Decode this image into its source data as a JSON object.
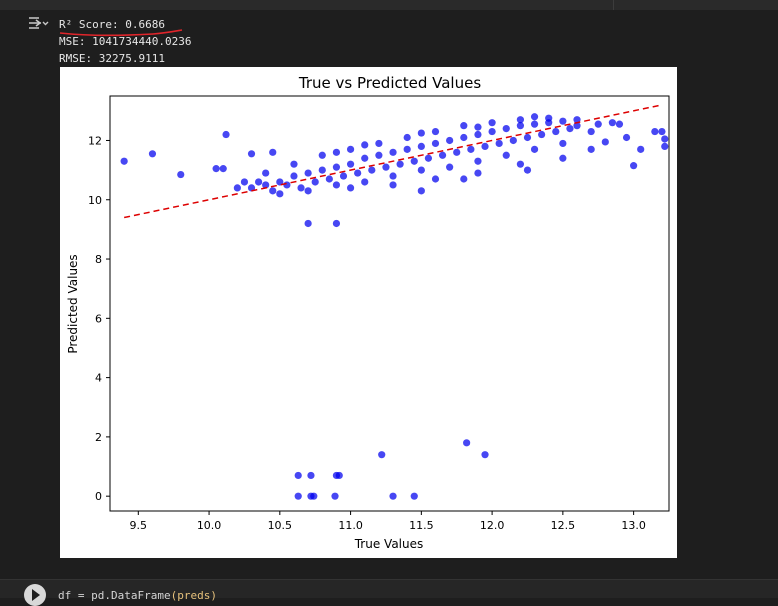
{
  "output": {
    "icon": "output-toggle-icon",
    "lines": {
      "r2": "R² Score: 0.6686",
      "mse": "MSE: 1041734440.0236",
      "rmse": "RMSE: 32275.9111"
    },
    "annotation_color": "#e0252b"
  },
  "chart_data": {
    "type": "scatter",
    "title": "True vs Predicted Values",
    "xlabel": "True Values",
    "ylabel": "Predicted Values",
    "xlim": [
      9.3,
      13.25
    ],
    "ylim": [
      -0.5,
      13.5
    ],
    "xticks": [
      "9.5",
      "10.0",
      "10.5",
      "11.0",
      "11.5",
      "12.0",
      "12.5",
      "13.0"
    ],
    "yticks": [
      "0",
      "2",
      "4",
      "6",
      "8",
      "10",
      "12"
    ],
    "point_color": "#0000ee",
    "line_color": "#dd0000",
    "reference_line": {
      "x": [
        9.4,
        13.2
      ],
      "y": [
        9.4,
        13.2
      ]
    },
    "points": [
      [
        9.4,
        11.3
      ],
      [
        9.6,
        11.55
      ],
      [
        9.8,
        10.85
      ],
      [
        10.05,
        11.05
      ],
      [
        10.1,
        11.05
      ],
      [
        10.12,
        12.2
      ],
      [
        10.3,
        11.55
      ],
      [
        10.7,
        9.2
      ],
      [
        10.9,
        9.2
      ],
      [
        10.45,
        11.6
      ],
      [
        11.5,
        10.3
      ],
      [
        11.8,
        10.7
      ],
      [
        12.25,
        11.0
      ],
      [
        12.5,
        11.4
      ],
      [
        12.7,
        11.7
      ],
      [
        12.95,
        12.1
      ],
      [
        13.0,
        11.15
      ],
      [
        13.05,
        11.7
      ],
      [
        13.15,
        12.3
      ],
      [
        13.2,
        12.3
      ],
      [
        13.22,
        12.05
      ],
      [
        13.22,
        11.8
      ],
      [
        12.75,
        12.55
      ],
      [
        12.85,
        12.6
      ],
      [
        12.9,
        12.55
      ],
      [
        12.6,
        12.7
      ],
      [
        12.7,
        12.3
      ],
      [
        12.8,
        11.95
      ],
      [
        10.63,
        0.7
      ],
      [
        10.72,
        0.7
      ],
      [
        10.9,
        0.7
      ],
      [
        10.92,
        0.7
      ],
      [
        11.22,
        1.4
      ],
      [
        11.82,
        1.8
      ],
      [
        11.95,
        1.4
      ],
      [
        10.63,
        0.0
      ],
      [
        10.72,
        0.0
      ],
      [
        10.74,
        0.0
      ],
      [
        10.89,
        0.0
      ],
      [
        11.3,
        0.0
      ],
      [
        11.45,
        0.0
      ],
      [
        10.3,
        10.4
      ],
      [
        10.35,
        10.6
      ],
      [
        10.4,
        10.5
      ],
      [
        10.45,
        10.3
      ],
      [
        10.5,
        10.6
      ],
      [
        10.55,
        10.5
      ],
      [
        10.6,
        10.8
      ],
      [
        10.65,
        10.4
      ],
      [
        10.7,
        10.9
      ],
      [
        10.75,
        10.6
      ],
      [
        10.8,
        11.0
      ],
      [
        10.85,
        10.7
      ],
      [
        10.9,
        11.1
      ],
      [
        10.95,
        10.8
      ],
      [
        11.0,
        11.2
      ],
      [
        11.05,
        10.9
      ],
      [
        11.1,
        11.4
      ],
      [
        11.15,
        11.0
      ],
      [
        11.2,
        11.5
      ],
      [
        11.25,
        11.1
      ],
      [
        11.3,
        11.6
      ],
      [
        11.35,
        11.2
      ],
      [
        11.4,
        11.7
      ],
      [
        11.45,
        11.3
      ],
      [
        11.5,
        11.8
      ],
      [
        11.55,
        11.4
      ],
      [
        11.6,
        11.9
      ],
      [
        11.65,
        11.5
      ],
      [
        11.7,
        12.0
      ],
      [
        11.75,
        11.6
      ],
      [
        11.8,
        12.1
      ],
      [
        11.85,
        11.7
      ],
      [
        11.9,
        12.2
      ],
      [
        11.95,
        11.8
      ],
      [
        12.0,
        12.3
      ],
      [
        12.05,
        11.9
      ],
      [
        12.1,
        12.4
      ],
      [
        12.15,
        12.0
      ],
      [
        12.2,
        12.5
      ],
      [
        12.25,
        12.1
      ],
      [
        12.3,
        12.55
      ],
      [
        12.35,
        12.2
      ],
      [
        12.4,
        12.6
      ],
      [
        12.45,
        12.3
      ],
      [
        12.5,
        12.65
      ],
      [
        12.55,
        12.4
      ],
      [
        12.6,
        12.5
      ],
      [
        10.4,
        10.9
      ],
      [
        10.6,
        11.2
      ],
      [
        10.8,
        11.5
      ],
      [
        11.0,
        11.7
      ],
      [
        11.2,
        11.9
      ],
      [
        11.4,
        12.1
      ],
      [
        11.6,
        12.3
      ],
      [
        11.8,
        12.5
      ],
      [
        12.0,
        12.6
      ],
      [
        12.2,
        12.7
      ],
      [
        10.5,
        10.2
      ],
      [
        10.7,
        10.3
      ],
      [
        10.9,
        10.5
      ],
      [
        11.1,
        10.6
      ],
      [
        11.3,
        10.8
      ],
      [
        11.5,
        11.0
      ],
      [
        11.7,
        11.1
      ],
      [
        11.9,
        11.3
      ],
      [
        12.1,
        11.5
      ],
      [
        12.3,
        11.7
      ],
      [
        12.5,
        11.9
      ],
      [
        11.0,
        10.4
      ],
      [
        11.3,
        10.5
      ],
      [
        11.6,
        10.7
      ],
      [
        11.9,
        10.9
      ],
      [
        12.2,
        11.2
      ],
      [
        10.2,
        10.4
      ],
      [
        10.25,
        10.6
      ],
      [
        10.9,
        11.6
      ],
      [
        11.1,
        11.85
      ],
      [
        11.5,
        12.25
      ],
      [
        11.9,
        12.45
      ],
      [
        12.3,
        12.8
      ],
      [
        12.4,
        12.75
      ]
    ]
  },
  "next_cell": {
    "run_icon": "play-icon",
    "code_prefix": "df = pd.DataFrame",
    "code_arg": "(preds)"
  }
}
